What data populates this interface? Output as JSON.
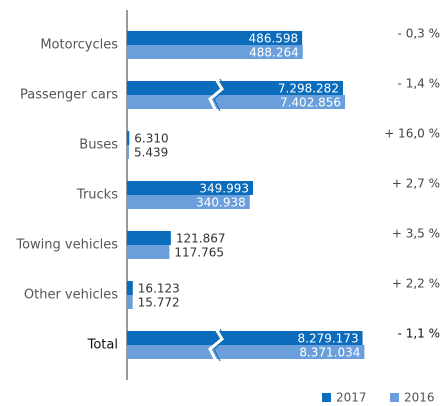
{
  "chart_data": {
    "type": "bar",
    "orientation": "horizontal",
    "categories": [
      "Motorcycles",
      "Passenger cars",
      "Buses",
      "Trucks",
      "Towing vehicles",
      "Other vehicles",
      "Total"
    ],
    "series": [
      {
        "name": "2017",
        "color": "#0b6cbb",
        "values": [
          486598,
          7298282,
          6310,
          349993,
          121867,
          16123,
          8279173
        ],
        "value_labels": [
          "486.598",
          "7.298.282",
          "6.310",
          "349.993",
          "121.867",
          "16.123",
          "8.279.173"
        ]
      },
      {
        "name": "2016",
        "color": "#6a9fdb",
        "values": [
          488264,
          7402856,
          5439,
          340938,
          117765,
          15772,
          8371034
        ],
        "value_labels": [
          "488.264",
          "7.402.856",
          "5.439",
          "340.938",
          "117.765",
          "15.772",
          "8.371.034"
        ]
      }
    ],
    "changes": [
      "- 0,3 %",
      "- 1,4 %",
      "+ 16,0 %",
      "+ 2,7 %",
      "+ 3,5 %",
      "+ 2,2 %",
      "- 1,1 %"
    ],
    "legend": "bottom-right"
  }
}
